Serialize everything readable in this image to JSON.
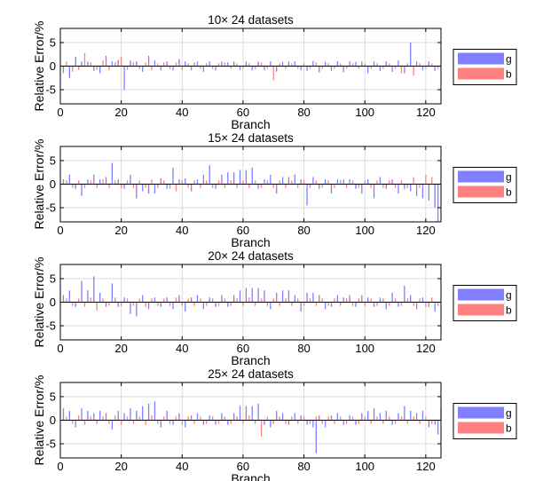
{
  "chart_data": [
    {
      "type": "bar",
      "title": "10× 24 datasets",
      "xlabel": "Branch",
      "ylabel": "Relative Error/%",
      "xlim": [
        0,
        125
      ],
      "ylim": [
        -8,
        8
      ],
      "xticks": [
        0,
        20,
        40,
        60,
        80,
        100,
        120
      ],
      "yticks": [
        -5,
        0,
        5
      ],
      "grid": true,
      "legend_position": "right",
      "series": [
        {
          "name": "g",
          "color": "#7f7fff",
          "x": [
            1,
            3,
            5,
            7,
            9,
            11,
            13,
            15,
            17,
            19,
            21,
            23,
            25,
            27,
            29,
            31,
            33,
            35,
            37,
            39,
            41,
            43,
            45,
            47,
            49,
            51,
            53,
            55,
            57,
            59,
            61,
            63,
            65,
            67,
            69,
            71,
            73,
            75,
            77,
            79,
            81,
            83,
            85,
            87,
            89,
            91,
            93,
            95,
            97,
            99,
            101,
            103,
            105,
            107,
            109,
            111,
            113,
            115,
            117,
            119,
            121,
            123
          ],
          "values": [
            -1.5,
            -2.5,
            2.0,
            1.0,
            1.0,
            -1.0,
            -1.5,
            2.2,
            1.0,
            1.3,
            -5.0,
            1.2,
            1.0,
            -1.2,
            2.2,
            1.2,
            -0.9,
            1.0,
            -0.9,
            1.5,
            1.0,
            -0.9,
            1.0,
            -1.2,
            1.0,
            -0.9,
            1.0,
            0.8,
            1.0,
            -0.8,
            1.0,
            -0.9,
            1.0,
            -0.9,
            1.0,
            -1.2,
            0.9,
            1.0,
            1.0,
            -0.9,
            -1.0,
            1.1,
            -1.3,
            0.9,
            -1.0,
            1.0,
            -1.3,
            1.0,
            0.9,
            1.0,
            -1.5,
            1.0,
            -1.0,
            1.0,
            -1.2,
            1.2,
            -1.5,
            5.0,
            1.0,
            -0.9,
            1.0,
            -1.0
          ]
        },
        {
          "name": "b",
          "color": "#ff8080",
          "x": [
            2,
            4,
            6,
            8,
            10,
            12,
            14,
            16,
            18,
            20,
            22,
            24,
            26,
            28,
            30,
            32,
            34,
            36,
            38,
            40,
            42,
            44,
            46,
            48,
            50,
            52,
            54,
            56,
            58,
            60,
            62,
            64,
            66,
            68,
            70,
            72,
            74,
            76,
            78,
            80,
            82,
            84,
            86,
            88,
            90,
            92,
            94,
            96,
            98,
            100,
            102,
            104,
            106,
            108,
            110,
            112,
            114,
            116,
            118,
            120,
            122,
            124
          ],
          "values": [
            1.0,
            -1.2,
            -0.8,
            2.8,
            0.8,
            -0.8,
            1.2,
            -0.8,
            0.8,
            2.0,
            -0.8,
            0.8,
            -0.6,
            0.8,
            -0.8,
            0.6,
            0.8,
            -0.6,
            0.8,
            -0.8,
            0.6,
            0.8,
            -0.6,
            0.6,
            -0.6,
            0.6,
            0.8,
            -0.6,
            0.6,
            -0.6,
            0.6,
            -0.6,
            0.8,
            -0.6,
            -3.0,
            0.6,
            -0.6,
            0.6,
            -0.6,
            0.6,
            -0.6,
            0.8,
            -0.6,
            0.6,
            -0.6,
            0.6,
            -0.6,
            0.6,
            -0.6,
            0.6,
            -0.6,
            0.6,
            -0.6,
            0.6,
            -0.6,
            -1.5,
            0.6,
            -2.0,
            0.6,
            -0.6,
            0.6,
            -0.6
          ]
        }
      ]
    },
    {
      "type": "bar",
      "title": "15× 24 datasets",
      "xlabel": "Branch",
      "ylabel": "Relative Error/%",
      "xlim": [
        0,
        125
      ],
      "ylim": [
        -8,
        8
      ],
      "xticks": [
        0,
        20,
        40,
        60,
        80,
        100,
        120
      ],
      "yticks": [
        -5,
        0,
        5
      ],
      "grid": true,
      "legend_position": "right",
      "series": [
        {
          "name": "g",
          "color": "#7f7fff",
          "x": [
            1,
            3,
            5,
            7,
            9,
            11,
            13,
            15,
            17,
            19,
            21,
            23,
            25,
            27,
            29,
            31,
            33,
            35,
            37,
            39,
            41,
            43,
            45,
            47,
            49,
            51,
            53,
            55,
            57,
            59,
            61,
            63,
            65,
            67,
            69,
            71,
            73,
            75,
            77,
            79,
            81,
            83,
            85,
            87,
            89,
            91,
            93,
            95,
            97,
            99,
            101,
            103,
            105,
            107,
            109,
            111,
            113,
            115,
            117,
            119,
            121,
            123,
            124
          ],
          "values": [
            1.0,
            2.0,
            -1.0,
            -2.5,
            1.0,
            2.0,
            1.0,
            1.5,
            4.5,
            1.0,
            -1.0,
            2.0,
            -3.0,
            -1.5,
            -2.0,
            -2.0,
            1.2,
            -1.0,
            3.5,
            1.0,
            1.2,
            -1.5,
            1.0,
            2.0,
            4.0,
            -1.0,
            2.0,
            2.5,
            2.5,
            3.0,
            3.0,
            3.5,
            -1.0,
            1.0,
            2.0,
            -2.0,
            1.5,
            1.5,
            2.0,
            1.0,
            -4.5,
            1.5,
            -1.0,
            1.0,
            -2.0,
            1.0,
            1.0,
            1.0,
            -1.0,
            -2.0,
            1.0,
            -3.0,
            1.5,
            -1.0,
            1.0,
            -2.0,
            -1.0,
            -1.5,
            -2.5,
            -3.0,
            -3.5,
            -5.0,
            -8.0
          ]
        },
        {
          "name": "b",
          "color": "#ff8080",
          "x": [
            2,
            4,
            6,
            8,
            10,
            12,
            14,
            16,
            18,
            20,
            22,
            24,
            26,
            28,
            30,
            32,
            34,
            36,
            38,
            40,
            42,
            44,
            46,
            48,
            50,
            52,
            54,
            56,
            58,
            60,
            62,
            64,
            66,
            68,
            70,
            72,
            74,
            76,
            78,
            80,
            82,
            84,
            86,
            88,
            90,
            92,
            94,
            96,
            98,
            100,
            102,
            104,
            106,
            108,
            110,
            112,
            114,
            116,
            118,
            120,
            122
          ],
          "values": [
            0.8,
            -0.8,
            0.8,
            -0.8,
            0.8,
            -0.8,
            1.0,
            -0.8,
            0.8,
            -0.8,
            0.8,
            -0.8,
            0.8,
            -0.8,
            1.0,
            -0.8,
            0.8,
            -1.0,
            -1.5,
            0.8,
            -0.8,
            0.8,
            -0.8,
            0.8,
            -0.8,
            0.8,
            -0.8,
            0.8,
            -0.8,
            0.8,
            -0.8,
            0.8,
            -0.8,
            0.8,
            -0.8,
            0.8,
            -0.8,
            0.8,
            -0.8,
            0.8,
            -0.8,
            0.8,
            -0.8,
            0.8,
            -0.8,
            0.8,
            -0.8,
            0.8,
            -0.8,
            0.8,
            -0.8,
            0.8,
            -0.8,
            0.8,
            -0.8,
            0.8,
            -0.8,
            1.5,
            -0.8,
            2.0,
            1.5
          ]
        }
      ]
    },
    {
      "type": "bar",
      "title": "20× 24 datasets",
      "xlabel": "Branch",
      "ylabel": "Relative Error/%",
      "xlim": [
        0,
        125
      ],
      "ylim": [
        -8,
        8
      ],
      "xticks": [
        0,
        20,
        40,
        60,
        80,
        100,
        120
      ],
      "yticks": [
        -5,
        0,
        5
      ],
      "grid": true,
      "legend_position": "right",
      "series": [
        {
          "name": "g",
          "color": "#7f7fff",
          "x": [
            1,
            3,
            5,
            7,
            9,
            11,
            13,
            15,
            17,
            19,
            21,
            23,
            25,
            27,
            29,
            31,
            33,
            35,
            37,
            39,
            41,
            43,
            45,
            47,
            49,
            51,
            53,
            55,
            57,
            59,
            61,
            63,
            65,
            67,
            69,
            71,
            73,
            75,
            77,
            79,
            81,
            83,
            85,
            87,
            89,
            91,
            93,
            95,
            97,
            99,
            101,
            103,
            105,
            107,
            109,
            111,
            113,
            115,
            117,
            119,
            121,
            123
          ],
          "values": [
            1.5,
            2.5,
            -1.0,
            4.5,
            2.5,
            5.5,
            2.0,
            -1.0,
            4.0,
            -1.0,
            1.0,
            -2.5,
            -3.0,
            1.5,
            -1.5,
            1.0,
            -1.0,
            1.0,
            -1.5,
            1.5,
            -2.0,
            1.0,
            1.5,
            -1.5,
            1.0,
            -1.0,
            1.5,
            -1.0,
            1.5,
            2.5,
            3.0,
            3.0,
            3.0,
            2.5,
            -1.5,
            2.0,
            2.5,
            2.5,
            1.5,
            -2.0,
            2.0,
            2.0,
            1.5,
            -1.5,
            -1.0,
            1.5,
            1.0,
            1.5,
            -1.0,
            1.5,
            1.0,
            -1.0,
            1.0,
            -1.5,
            2.0,
            -1.0,
            3.5,
            1.5,
            -1.5,
            1.0,
            -1.0,
            -2.0
          ]
        },
        {
          "name": "b",
          "color": "#ff8080",
          "x": [
            2,
            4,
            6,
            8,
            10,
            12,
            14,
            16,
            18,
            20,
            22,
            24,
            26,
            28,
            30,
            32,
            34,
            36,
            38,
            40,
            42,
            44,
            46,
            48,
            50,
            52,
            54,
            56,
            58,
            60,
            62,
            64,
            66,
            68,
            70,
            72,
            74,
            76,
            78,
            80,
            82,
            84,
            86,
            88,
            90,
            92,
            94,
            96,
            98,
            100,
            102,
            104,
            106,
            108,
            110,
            112,
            114,
            116,
            118,
            120,
            122,
            124
          ],
          "values": [
            0.8,
            -0.8,
            0.8,
            -1.0,
            1.0,
            -1.8,
            0.8,
            -0.8,
            1.0,
            -0.8,
            0.8,
            -0.8,
            0.8,
            -1.0,
            0.8,
            -0.8,
            0.8,
            -0.8,
            1.0,
            -0.8,
            0.8,
            -0.8,
            0.8,
            -0.8,
            0.8,
            -0.8,
            0.8,
            -0.8,
            0.8,
            -0.8,
            1.0,
            -0.8,
            0.8,
            -0.8,
            0.8,
            -0.8,
            0.8,
            -0.8,
            0.8,
            -0.8,
            0.8,
            -0.8,
            0.8,
            -0.8,
            0.8,
            -0.8,
            0.8,
            -0.8,
            0.8,
            -0.8,
            0.8,
            -0.8,
            0.8,
            -0.8,
            0.8,
            -0.8,
            0.8,
            -0.8,
            0.8,
            -1.0,
            1.0,
            -0.8
          ]
        }
      ]
    },
    {
      "type": "bar",
      "title": "25× 24 datasets",
      "xlabel": "Branch",
      "ylabel": "Relative Error/%",
      "xlim": [
        0,
        125
      ],
      "ylim": [
        -8,
        8
      ],
      "xticks": [
        0,
        20,
        40,
        60,
        80,
        100,
        120
      ],
      "yticks": [
        -5,
        0,
        5
      ],
      "grid": true,
      "legend_position": "right",
      "series": [
        {
          "name": "g",
          "color": "#7f7fff",
          "x": [
            1,
            3,
            5,
            7,
            9,
            11,
            13,
            15,
            17,
            19,
            21,
            23,
            25,
            27,
            29,
            31,
            33,
            35,
            37,
            39,
            41,
            43,
            45,
            47,
            49,
            51,
            53,
            55,
            57,
            59,
            61,
            63,
            65,
            67,
            69,
            71,
            73,
            75,
            77,
            79,
            81,
            83,
            84,
            85,
            87,
            89,
            91,
            93,
            95,
            97,
            99,
            101,
            103,
            105,
            107,
            109,
            111,
            113,
            115,
            117,
            119,
            121,
            123,
            124
          ],
          "values": [
            2.5,
            2.0,
            -1.5,
            2.5,
            2.0,
            1.5,
            2.0,
            1.5,
            -2.0,
            2.0,
            1.5,
            2.5,
            2.0,
            3.0,
            3.5,
            4.0,
            -1.5,
            2.0,
            -1.0,
            1.5,
            -1.5,
            1.0,
            1.5,
            -1.0,
            1.0,
            -1.0,
            1.5,
            -1.0,
            1.5,
            3.0,
            3.0,
            3.0,
            3.5,
            -1.0,
            -1.5,
            2.0,
            1.5,
            -1.0,
            1.5,
            1.0,
            -1.0,
            -1.5,
            -7.0,
            1.0,
            -1.5,
            1.0,
            1.5,
            -1.0,
            1.0,
            -1.0,
            1.5,
            2.0,
            2.5,
            1.5,
            2.0,
            -1.0,
            1.5,
            3.0,
            2.0,
            1.5,
            2.0,
            -1.5,
            -1.0,
            -3.0
          ]
        },
        {
          "name": "b",
          "color": "#ff8080",
          "x": [
            2,
            4,
            6,
            8,
            10,
            12,
            14,
            16,
            18,
            20,
            22,
            24,
            26,
            28,
            30,
            32,
            34,
            36,
            38,
            40,
            42,
            44,
            46,
            48,
            50,
            52,
            54,
            56,
            58,
            60,
            62,
            64,
            66,
            68,
            70,
            72,
            74,
            76,
            78,
            80,
            82,
            84,
            86,
            88,
            90,
            92,
            94,
            96,
            98,
            100,
            102,
            104,
            106,
            108,
            110,
            112,
            114,
            116,
            118,
            120,
            122,
            125
          ],
          "values": [
            0.8,
            -0.8,
            1.0,
            -1.0,
            0.8,
            -0.8,
            0.8,
            -0.8,
            1.0,
            -1.0,
            0.8,
            -0.8,
            0.8,
            -1.0,
            1.0,
            -0.8,
            0.8,
            -0.8,
            0.8,
            -1.0,
            0.8,
            -0.8,
            0.8,
            -0.8,
            0.8,
            -0.8,
            0.8,
            -0.8,
            0.8,
            -0.8,
            1.0,
            -0.8,
            -3.5,
            0.8,
            -0.8,
            0.8,
            -0.8,
            0.8,
            -0.8,
            0.8,
            -0.8,
            0.8,
            -0.8,
            0.8,
            -0.8,
            0.8,
            -0.8,
            0.8,
            -0.8,
            0.8,
            -0.8,
            0.8,
            -0.8,
            0.8,
            -0.8,
            0.8,
            -0.8,
            0.8,
            -0.8,
            0.8,
            -0.8,
            2.5
          ]
        }
      ]
    }
  ]
}
